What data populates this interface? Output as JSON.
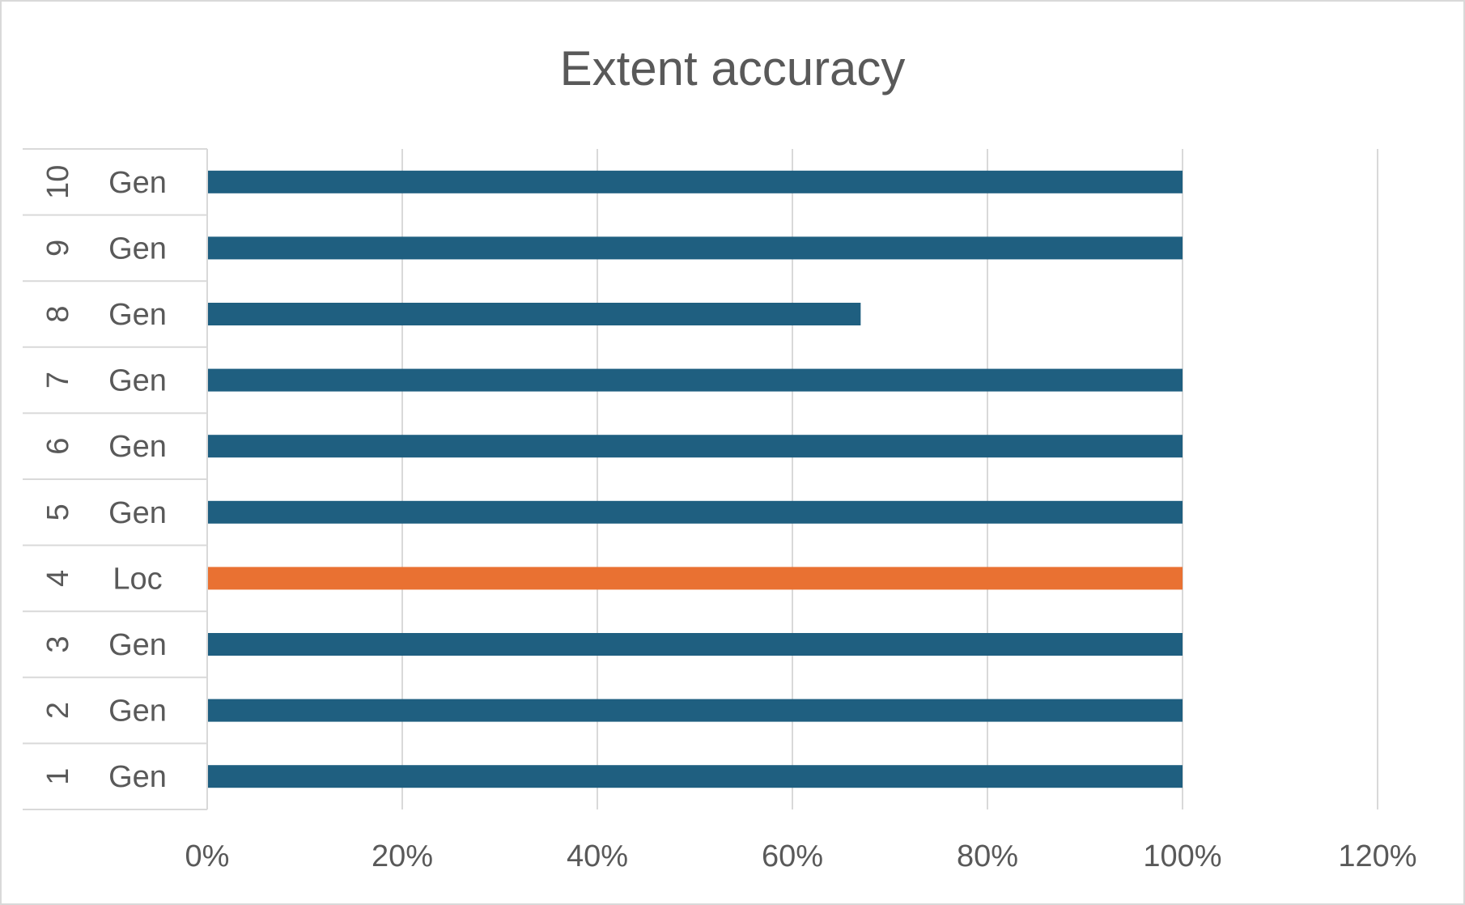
{
  "chart_data": {
    "type": "bar",
    "orientation": "horizontal",
    "title": "Extent accuracy",
    "xlabel": "",
    "ylabel": "",
    "xlim": [
      0,
      1.2
    ],
    "x_ticks": [
      "0%",
      "20%",
      "40%",
      "60%",
      "80%",
      "100%",
      "120%"
    ],
    "grid": true,
    "categories": [
      {
        "index": "1",
        "group": "Gen",
        "value": 1.0
      },
      {
        "index": "2",
        "group": "Gen",
        "value": 1.0
      },
      {
        "index": "3",
        "group": "Gen",
        "value": 1.0
      },
      {
        "index": "4",
        "group": "Loc",
        "value": 1.0
      },
      {
        "index": "5",
        "group": "Gen",
        "value": 1.0
      },
      {
        "index": "6",
        "group": "Gen",
        "value": 1.0
      },
      {
        "index": "7",
        "group": "Gen",
        "value": 1.0
      },
      {
        "index": "8",
        "group": "Gen",
        "value": 0.67
      },
      {
        "index": "9",
        "group": "Gen",
        "value": 1.0
      },
      {
        "index": "10",
        "group": "Gen",
        "value": 1.0
      }
    ],
    "colors": {
      "Gen": "#1f5f80",
      "Loc": "#e97132"
    }
  }
}
